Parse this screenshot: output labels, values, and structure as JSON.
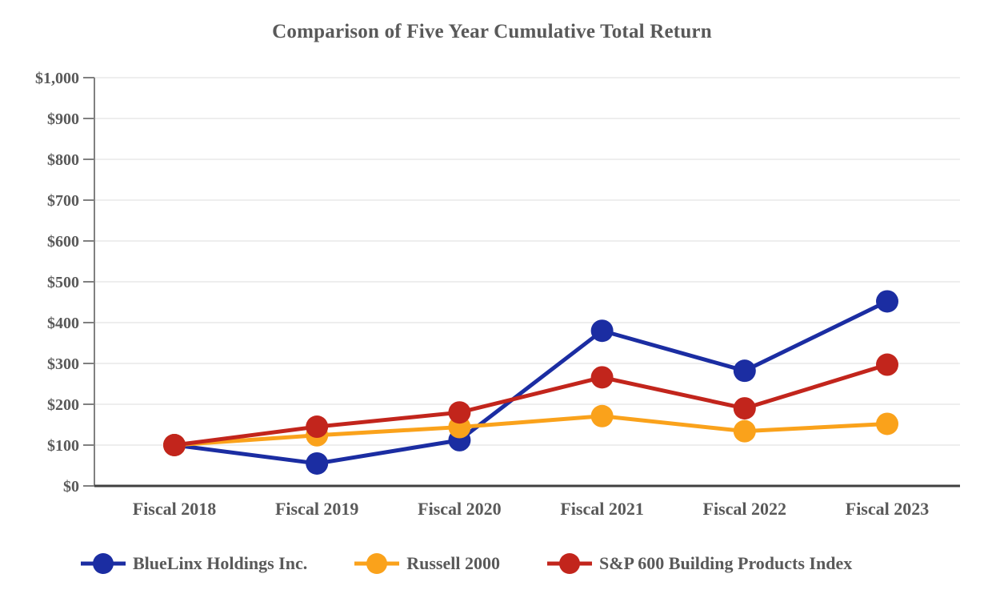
{
  "title": "Comparison of Five Year Cumulative Total Return",
  "chart_data": {
    "type": "line",
    "title": "Comparison of Five Year Cumulative Total Return",
    "categories": [
      "Fiscal 2018",
      "Fiscal 2019",
      "Fiscal 2020",
      "Fiscal 2021",
      "Fiscal 2022",
      "Fiscal 2023"
    ],
    "series": [
      {
        "name": "BlueLinx Holdings Inc.",
        "color": "#1B2DA2",
        "values": [
          100,
          55,
          112,
          380,
          282,
          452
        ]
      },
      {
        "name": "Russell 2000",
        "color": "#FAA21B",
        "values": [
          100,
          124,
          144,
          171,
          134,
          152
        ]
      },
      {
        "name": "S&P 600 Building Products Index",
        "color": "#C2251C",
        "values": [
          100,
          145,
          180,
          266,
          190,
          297
        ]
      }
    ],
    "xlabel": "",
    "ylabel": "",
    "ylim": [
      0,
      1000
    ],
    "y_tick_step": 100,
    "y_tick_labels": [
      "$0",
      "$100",
      "$200",
      "$300",
      "$400",
      "$500",
      "$600",
      "$700",
      "$800",
      "$900",
      "$1,000"
    ],
    "grid": true,
    "legend_position": "bottom",
    "marker": "circle"
  },
  "colors": {
    "title_text": "#595959",
    "axis_text": "#595959",
    "gridline": "#E9E9E9",
    "axis_line": "#808080",
    "baseline": "#404040",
    "background": "#FFFFFF"
  }
}
